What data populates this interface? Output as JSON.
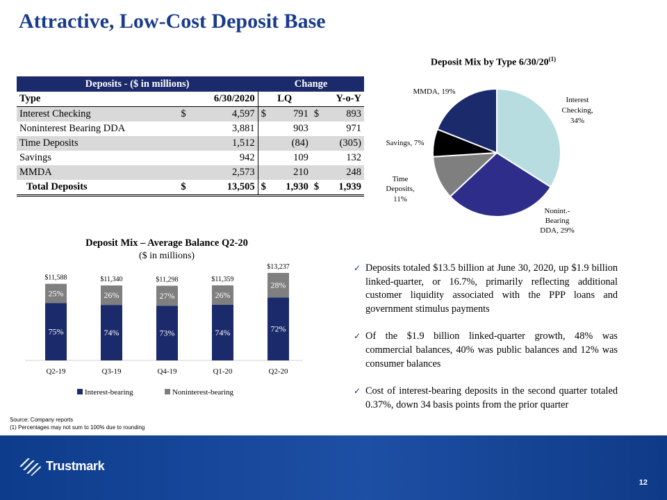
{
  "title": "Attractive, Low-Cost Deposit Base",
  "table": {
    "header_left": "Deposits - ($ in millions)",
    "header_right": "Change",
    "col_type": "Type",
    "col_date": "6/30/2020",
    "col_lq": "LQ",
    "col_yoy": "Y-o-Y",
    "rows": [
      {
        "type": "Interest Checking",
        "date": "4,597",
        "lq": "791",
        "yoy": "893",
        "dollar": "$"
      },
      {
        "type": "Noninterest Bearing DDA",
        "date": "3,881",
        "lq": "903",
        "yoy": "971"
      },
      {
        "type": "Time Deposits",
        "date": "1,512",
        "lq": "(84)",
        "yoy": "(305)"
      },
      {
        "type": "Savings",
        "date": "942",
        "lq": "109",
        "yoy": "132"
      },
      {
        "type": "MMDA",
        "date": "2,573",
        "lq": "210",
        "yoy": "248"
      }
    ],
    "total": {
      "type": "Total Deposits",
      "date": "13,505",
      "lq": "1,930",
      "yoy": "1,939",
      "dollar": "$"
    }
  },
  "chart_data": [
    {
      "type": "pie",
      "title": "Deposit Mix by Type 6/30/20",
      "title_sup": "(1)",
      "slices": [
        {
          "label": "Interest Checking,",
          "pct": "34%",
          "value": 34,
          "color": "#b8dde1"
        },
        {
          "label": "Nonint.- Bearing DDA,",
          "pct": "29%",
          "value": 29,
          "color": "#2e2e8a"
        },
        {
          "label": "Time Deposits,",
          "pct": "11%",
          "value": 11,
          "color": "#7f7f7f"
        },
        {
          "label": "Savings,",
          "pct": "7%",
          "value": 7,
          "color": "#000000"
        },
        {
          "label": "MMDA,",
          "pct": "19%",
          "value": 19,
          "color": "#1b2a6b"
        }
      ]
    },
    {
      "type": "bar",
      "title": "Deposit Mix – Average Balance Q2-20",
      "subtitle": "($ in millions)",
      "categories": [
        "Q2-19",
        "Q3-19",
        "Q4-19",
        "Q1-20",
        "Q2-20"
      ],
      "totals": [
        "$11,588",
        "$11,340",
        "$11,298",
        "$11,359",
        "$13,237"
      ],
      "total_values": [
        11588,
        11340,
        11298,
        11359,
        13237
      ],
      "series": [
        {
          "name": "Interest-bearing",
          "values": [
            75,
            74,
            73,
            74,
            72
          ],
          "color": "#1b2a6b"
        },
        {
          "name": "Noninterest-bearing",
          "values": [
            25,
            26,
            27,
            26,
            28
          ],
          "color": "#7f7f7f"
        }
      ]
    }
  ],
  "bullets": [
    "Deposits totaled $13.5 billion at June 30, 2020, up $1.9 billion linked-quarter, or 16.7%, primarily reflecting additional customer liquidity associated with the PPP loans and government stimulus payments",
    "Of the $1.9 billion linked-quarter growth, 48% was commercial balances, 40% was public balances and 12% was consumer balances",
    "Cost of interest-bearing deposits in the second quarter totaled 0.37%, down 34 basis points from the prior quarter"
  ],
  "source_note": "Source: Company reports",
  "footnote": "(1) Percentages may not sum to 100% due to rounding",
  "brand": "Trustmark",
  "page_number": "12",
  "check_icon": "✓"
}
